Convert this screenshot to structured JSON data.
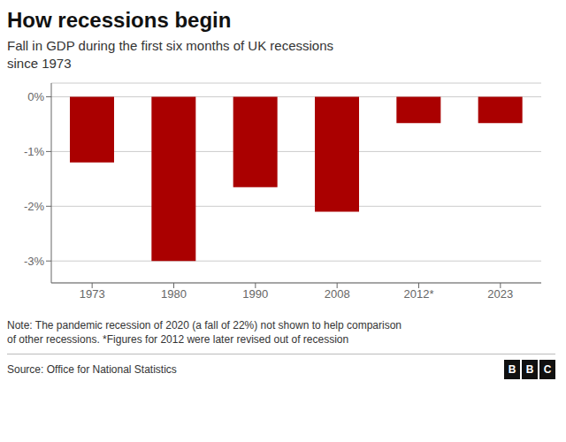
{
  "chart_data": {
    "type": "bar",
    "title": "How recessions begin",
    "subtitle": "Fall in GDP during the first six months of UK recessions\nsince 1973",
    "categories": [
      "1973",
      "1980",
      "1990",
      "2008",
      "2012*",
      "2023"
    ],
    "values": [
      -1.2,
      -3.0,
      -1.65,
      -2.1,
      -0.48,
      -0.48
    ],
    "color": "#aa0000",
    "ylim": [
      -3.4,
      0.25
    ],
    "yticks": [
      {
        "value": 0,
        "label": "0%"
      },
      {
        "value": -1,
        "label": "-1%"
      },
      {
        "value": -2,
        "label": "-2%"
      },
      {
        "value": -3,
        "label": "-3%"
      }
    ],
    "grid": true,
    "note": "Note: The pandemic recession of 2020 (a fall of 22%) not shown to help comparison\nof other recessions. *Figures for 2012 were later revised out of recession",
    "source": "Source: Office for National Statistics",
    "logo_letters": [
      "B",
      "B",
      "C"
    ]
  }
}
